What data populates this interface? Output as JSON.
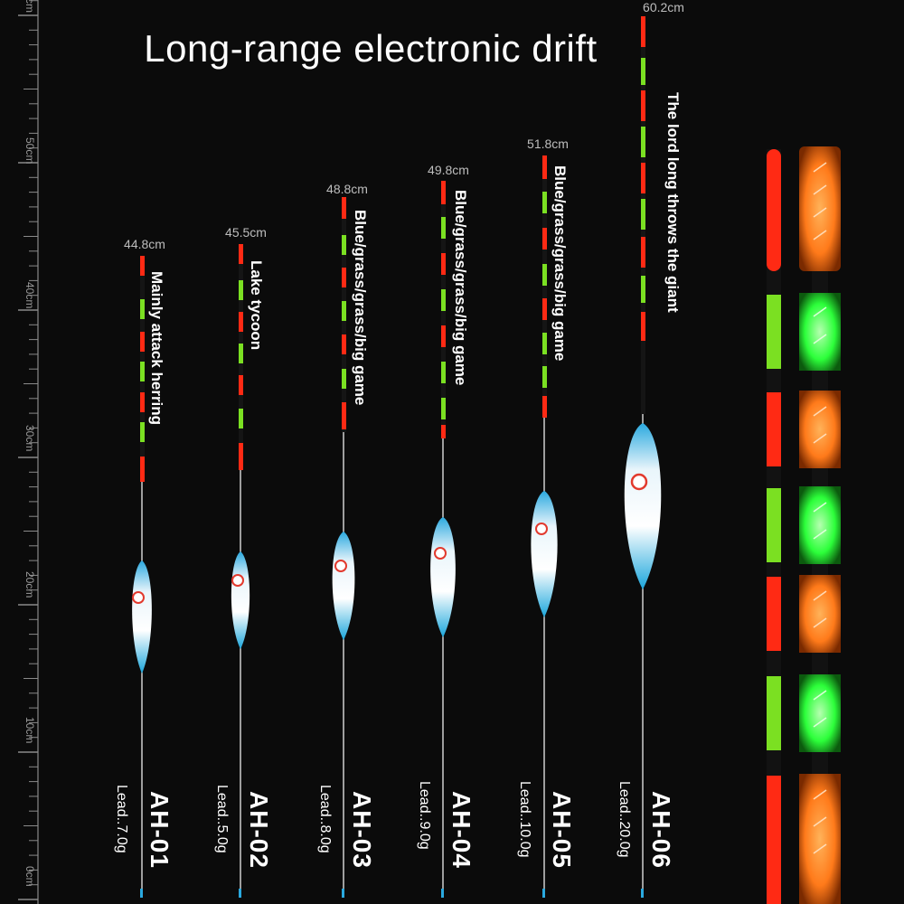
{
  "title": "Long-range electronic drift",
  "ruler": {
    "labels": [
      "cm",
      "50cm",
      "40cm",
      "30cm",
      "20cm",
      "10cm",
      "0cm"
    ]
  },
  "floats": [
    {
      "code": "AH-01",
      "length": "44.8cm",
      "description": "Mainly attack herring",
      "lead": "Lead..7.0g"
    },
    {
      "code": "AH-02",
      "length": "45.5cm",
      "description": "Lake tycoon",
      "lead": "Lead..5.0g"
    },
    {
      "code": "AH-03",
      "length": "48.8cm",
      "description": "Blue/grass/grass/big game",
      "lead": "Lead..8.0g"
    },
    {
      "code": "AH-04",
      "length": "49.8cm",
      "description": "Blue/grass/grass/big game",
      "lead": "Lead..9.0g"
    },
    {
      "code": "AH-05",
      "length": "51.8cm",
      "description": "Blue/grass/grass/big game",
      "lead": "Lead..10.0g"
    },
    {
      "code": "AH-06",
      "length": "60.2cm",
      "description": "The lord long throws the giant",
      "lead": "Lead..20.0g"
    }
  ],
  "colors": {
    "red": "#ff2a14",
    "green": "#7be022",
    "orange": "#ff7a1a",
    "glow_green": "#2cff3a",
    "body_blue": "#2aa9df"
  }
}
